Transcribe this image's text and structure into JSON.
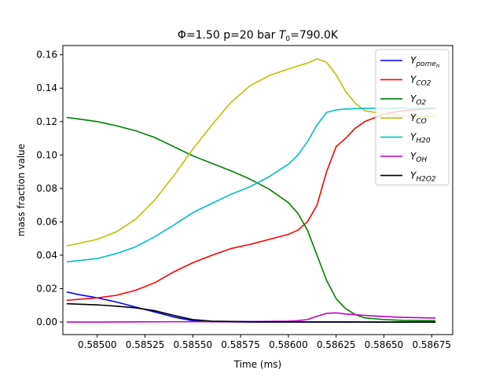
{
  "chart_data": {
    "type": "line",
    "title_parts": [
      "Φ=1.50 p=20 bar ",
      "T",
      "0",
      "=790.0K"
    ],
    "xlabel": "Time (ms)",
    "ylabel": "mass fraction value",
    "xlim": [
      0.58482,
      0.58686
    ],
    "ylim": [
      -0.0075,
      0.1655
    ],
    "xticks": [
      0.585,
      0.58525,
      0.5855,
      0.58575,
      0.586,
      0.58625,
      0.5865,
      0.58675
    ],
    "xtick_labels": [
      "0.58500",
      "0.58525",
      "0.58550",
      "0.58575",
      "0.58600",
      "0.58625",
      "0.58650",
      "0.58675"
    ],
    "yticks": [
      0.0,
      0.02,
      0.04,
      0.06,
      0.08,
      0.1,
      0.12,
      0.14,
      0.16
    ],
    "ytick_labels": [
      "0.00",
      "0.02",
      "0.04",
      "0.06",
      "0.08",
      "0.10",
      "0.12",
      "0.14",
      "0.16"
    ],
    "grid": false,
    "legend_position": "top-right",
    "series": [
      {
        "name": "pome",
        "name_sub": "n",
        "legend_prefix": "Y",
        "color": "#0000ff",
        "x": [
          0.58484,
          0.5849,
          0.585,
          0.5851,
          0.5852,
          0.5853,
          0.5854,
          0.5855,
          0.5856,
          0.5858,
          0.586,
          0.5862,
          0.5864,
          0.5866,
          0.58677
        ],
        "y": [
          0.018,
          0.0165,
          0.0145,
          0.012,
          0.009,
          0.006,
          0.003,
          0.0008,
          0.0002,
          0.0,
          0.0,
          0.0,
          0.0,
          0.0,
          0.0
        ]
      },
      {
        "name": "CO2",
        "legend_prefix": "Y",
        "color": "#ff0000",
        "x": [
          0.58484,
          0.585,
          0.5851,
          0.5852,
          0.5853,
          0.5854,
          0.5855,
          0.5856,
          0.5857,
          0.5858,
          0.5859,
          0.586,
          0.58605,
          0.5861,
          0.58615,
          0.5862,
          0.58625,
          0.5863,
          0.58635,
          0.5864,
          0.5865,
          0.5866,
          0.58677
        ],
        "y": [
          0.013,
          0.0145,
          0.016,
          0.019,
          0.0235,
          0.03,
          0.0355,
          0.04,
          0.044,
          0.0465,
          0.0495,
          0.0525,
          0.055,
          0.06,
          0.07,
          0.09,
          0.105,
          0.11,
          0.116,
          0.12,
          0.1245,
          0.1265,
          0.128
        ]
      },
      {
        "name": "O2",
        "legend_prefix": "Y",
        "color": "#008000",
        "x": [
          0.58484,
          0.585,
          0.5851,
          0.5852,
          0.5853,
          0.5854,
          0.5855,
          0.5856,
          0.5857,
          0.5858,
          0.5859,
          0.586,
          0.58605,
          0.5861,
          0.58615,
          0.5862,
          0.58625,
          0.5863,
          0.58635,
          0.5864,
          0.5865,
          0.5866,
          0.58677
        ],
        "y": [
          0.1225,
          0.12,
          0.1175,
          0.1145,
          0.1105,
          0.105,
          0.0995,
          0.095,
          0.0905,
          0.0855,
          0.0795,
          0.0715,
          0.065,
          0.055,
          0.04,
          0.025,
          0.014,
          0.008,
          0.0045,
          0.0025,
          0.0015,
          0.001,
          0.0008
        ]
      },
      {
        "name": "CO",
        "legend_prefix": "Y",
        "color": "#bfbf00",
        "x": [
          0.58484,
          0.585,
          0.5851,
          0.5852,
          0.5853,
          0.5854,
          0.5855,
          0.5856,
          0.5857,
          0.5858,
          0.5859,
          0.586,
          0.5861,
          0.58615,
          0.5862,
          0.58625,
          0.5863,
          0.58635,
          0.5864,
          0.5865,
          0.5866,
          0.58677
        ],
        "y": [
          0.0455,
          0.0495,
          0.054,
          0.0615,
          0.073,
          0.0875,
          0.1035,
          0.118,
          0.1315,
          0.1415,
          0.1475,
          0.1515,
          0.155,
          0.1575,
          0.1555,
          0.148,
          0.138,
          0.131,
          0.1265,
          0.1245,
          0.1235,
          0.123
        ]
      },
      {
        "name": "H20",
        "legend_prefix": "Y",
        "color": "#00bfbf",
        "x": [
          0.58484,
          0.585,
          0.5851,
          0.5852,
          0.5853,
          0.5854,
          0.5855,
          0.5856,
          0.5857,
          0.5858,
          0.5859,
          0.586,
          0.58605,
          0.5861,
          0.58615,
          0.5862,
          0.58625,
          0.5863,
          0.5864,
          0.5865,
          0.5866,
          0.58677
        ],
        "y": [
          0.036,
          0.038,
          0.041,
          0.045,
          0.051,
          0.058,
          0.0655,
          0.071,
          0.0765,
          0.081,
          0.087,
          0.0945,
          0.1,
          0.108,
          0.118,
          0.1255,
          0.127,
          0.1275,
          0.128,
          0.128,
          0.128,
          0.128
        ]
      },
      {
        "name": "OH",
        "legend_prefix": "Y",
        "color": "#bf00bf",
        "x": [
          0.58484,
          0.585,
          0.5852,
          0.5854,
          0.5856,
          0.5858,
          0.586,
          0.58605,
          0.5861,
          0.58615,
          0.5862,
          0.58625,
          0.5863,
          0.5864,
          0.5865,
          0.5866,
          0.58677
        ],
        "y": [
          0.0,
          0.0,
          0.0001,
          0.0002,
          0.0002,
          0.0003,
          0.0005,
          0.0008,
          0.0015,
          0.0035,
          0.0052,
          0.0055,
          0.0048,
          0.004,
          0.0033,
          0.0028,
          0.0024
        ]
      },
      {
        "name": "H2O2",
        "legend_prefix": "Y",
        "color": "#000000",
        "x": [
          0.58484,
          0.585,
          0.5851,
          0.5852,
          0.5853,
          0.5854,
          0.5855,
          0.5856,
          0.5858,
          0.586,
          0.5862,
          0.5864,
          0.5866,
          0.58677
        ],
        "y": [
          0.011,
          0.0103,
          0.0095,
          0.0085,
          0.0068,
          0.004,
          0.0015,
          0.0005,
          0.0002,
          0.0001,
          0.0001,
          0.0,
          0.0,
          0.0
        ]
      }
    ]
  }
}
